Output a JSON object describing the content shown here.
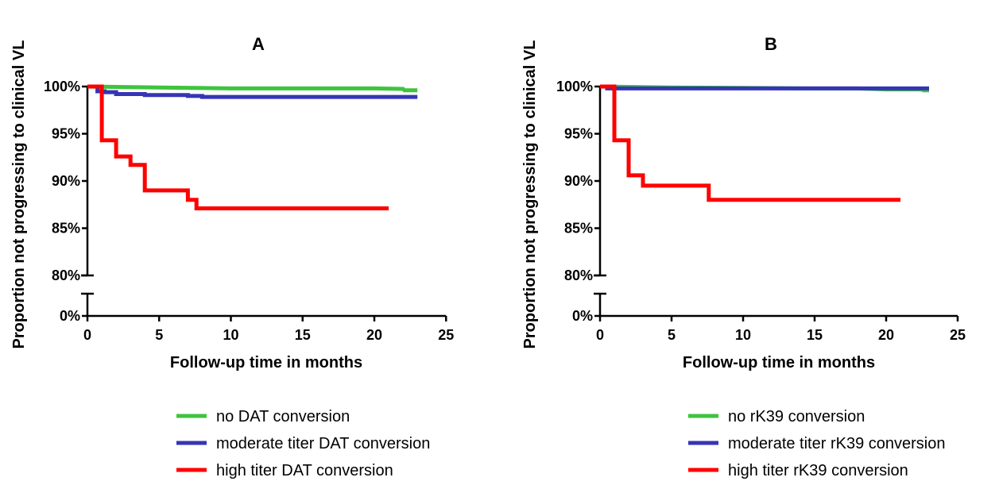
{
  "chart_data": [
    {
      "type": "line",
      "title": "A",
      "xlabel": "Follow-up time in months",
      "ylabel": "Proportion not progressing to clinical VL",
      "xlim": [
        0,
        25
      ],
      "x_ticks": [
        "0",
        "5",
        "10",
        "15",
        "20",
        "25"
      ],
      "y_ticks": [
        "0%",
        "80%",
        "85%",
        "90%",
        "95%",
        "100%"
      ],
      "y_axis_break": [
        0,
        80
      ],
      "series": [
        {
          "name": "no DAT conversion",
          "color": "#3ec43e",
          "points": [
            [
              0,
              100
            ],
            [
              5,
              99.9
            ],
            [
              10,
              99.8
            ],
            [
              15,
              99.8
            ],
            [
              20,
              99.8
            ],
            [
              22,
              99.75
            ],
            [
              22.1,
              99.6
            ],
            [
              23,
              99.6
            ]
          ]
        },
        {
          "name": "moderate titer DAT conversion",
          "color": "#3535b5",
          "points": [
            [
              0,
              100
            ],
            [
              0.7,
              100
            ],
            [
              0.7,
              99.5
            ],
            [
              1.2,
              99.5
            ],
            [
              1.2,
              99.4
            ],
            [
              2,
              99.4
            ],
            [
              2,
              99.2
            ],
            [
              4,
              99.2
            ],
            [
              4,
              99.1
            ],
            [
              7,
              99.1
            ],
            [
              7,
              99.0
            ],
            [
              8,
              99.0
            ],
            [
              8,
              98.9
            ],
            [
              23,
              98.9
            ]
          ]
        },
        {
          "name": "high titer DAT conversion",
          "color": "#ff0000",
          "points": [
            [
              0,
              100
            ],
            [
              1,
              100
            ],
            [
              1,
              94.3
            ],
            [
              2,
              94.3
            ],
            [
              2,
              92.6
            ],
            [
              3,
              92.6
            ],
            [
              3,
              91.7
            ],
            [
              4,
              91.7
            ],
            [
              4,
              89.0
            ],
            [
              7,
              89.0
            ],
            [
              7,
              88.0
            ],
            [
              7.6,
              88.0
            ],
            [
              7.6,
              87.1
            ],
            [
              21,
              87.1
            ]
          ]
        }
      ]
    },
    {
      "type": "line",
      "title": "B",
      "xlabel": "Follow-up time in months",
      "ylabel": "Proportion not progressing to clinical VL",
      "xlim": [
        0,
        25
      ],
      "x_ticks": [
        "0",
        "5",
        "10",
        "15",
        "20",
        "25"
      ],
      "y_ticks": [
        "0%",
        "80%",
        "85%",
        "90%",
        "95%",
        "100%"
      ],
      "y_axis_break": [
        0,
        80
      ],
      "series": [
        {
          "name": "no rK39 conversion",
          "color": "#3ec43e",
          "points": [
            [
              0,
              100
            ],
            [
              5,
              99.9
            ],
            [
              10,
              99.85
            ],
            [
              15,
              99.8
            ],
            [
              18,
              99.8
            ],
            [
              20,
              99.7
            ],
            [
              22.5,
              99.7
            ],
            [
              22.6,
              99.6
            ],
            [
              23,
              99.6
            ]
          ]
        },
        {
          "name": "moderate titer rK39 conversion",
          "color": "#3535b5",
          "points": [
            [
              0,
              100
            ],
            [
              0.5,
              100
            ],
            [
              0.5,
              99.8
            ],
            [
              23,
              99.8
            ]
          ]
        },
        {
          "name": "high titer rK39 conversion",
          "color": "#ff0000",
          "points": [
            [
              0,
              100
            ],
            [
              1,
              100
            ],
            [
              1,
              94.3
            ],
            [
              2,
              94.3
            ],
            [
              2,
              90.6
            ],
            [
              3,
              90.6
            ],
            [
              3,
              89.5
            ],
            [
              7.6,
              89.5
            ],
            [
              7.6,
              88.0
            ],
            [
              21,
              88.0
            ]
          ]
        }
      ]
    }
  ]
}
